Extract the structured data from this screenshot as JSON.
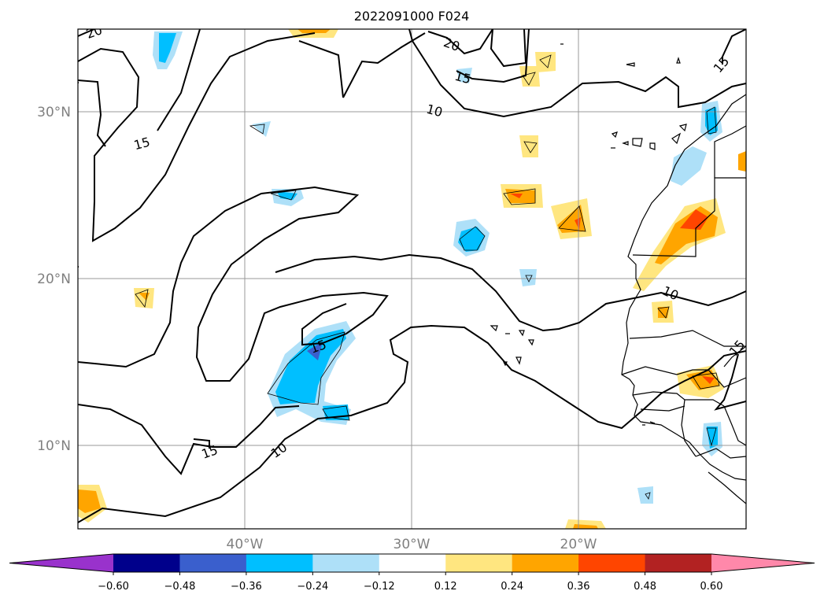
{
  "title": "2022091000 F024",
  "map": {
    "lat_ticks": [
      {
        "value": 30,
        "label": "30°N"
      },
      {
        "value": 20,
        "label": "20°N"
      },
      {
        "value": 10,
        "label": "10°N"
      }
    ],
    "lon_ticks": [
      {
        "value": -40,
        "label": "40°W"
      },
      {
        "value": -30,
        "label": "30°W"
      },
      {
        "value": -20,
        "label": "20°W"
      }
    ],
    "extent": {
      "lon_min": -50,
      "lon_max": -10,
      "lat_min": 5,
      "lat_max": 35
    },
    "gridlines": true,
    "contour_labels": [
      {
        "text": "20"
      },
      {
        "text": "20"
      },
      {
        "text": "15"
      },
      {
        "text": "15"
      },
      {
        "text": "10"
      },
      {
        "text": "10"
      },
      {
        "text": "15"
      },
      {
        "text": "15"
      },
      {
        "text": "10"
      },
      {
        "text": "15"
      },
      {
        "text": "15"
      }
    ]
  },
  "colorbar": {
    "ticks": [
      "−0.60",
      "−0.48",
      "−0.36",
      "−0.24",
      "−0.12",
      "0.12",
      "0.24",
      "0.36",
      "0.48",
      "0.60"
    ],
    "colors": [
      "#9932cc",
      "#00008b",
      "#3a5fcd",
      "#00bfff",
      "#aee0f8",
      "#ffffff",
      "#ffe680",
      "#ffa500",
      "#ff4500",
      "#b22222",
      "#ff88aa"
    ]
  }
}
